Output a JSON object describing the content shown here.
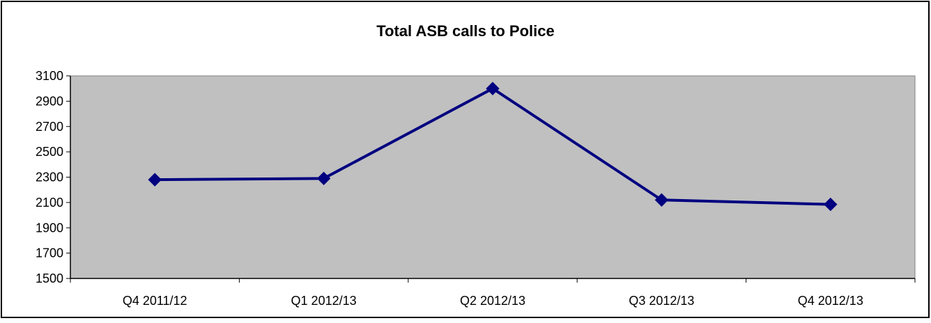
{
  "chart_data": {
    "type": "line",
    "title": "Total ASB calls to Police",
    "xlabel": "",
    "ylabel": "",
    "categories": [
      "Q4 2011/12",
      "Q1 2012/13",
      "Q2 2012/13",
      "Q3 2012/13",
      "Q4 2012/13"
    ],
    "series": [
      {
        "values": [
          2280,
          2290,
          3000,
          2120,
          2085
        ]
      }
    ],
    "ylim": [
      1500,
      3100
    ],
    "yticks": [
      1500,
      1700,
      1900,
      2100,
      2300,
      2500,
      2700,
      2900,
      3100
    ],
    "grid": false,
    "legend": "none",
    "marker": "diamond",
    "colors": {
      "line": "#000080",
      "plot_background": "#c0c0c0",
      "frame": "#000000"
    }
  }
}
